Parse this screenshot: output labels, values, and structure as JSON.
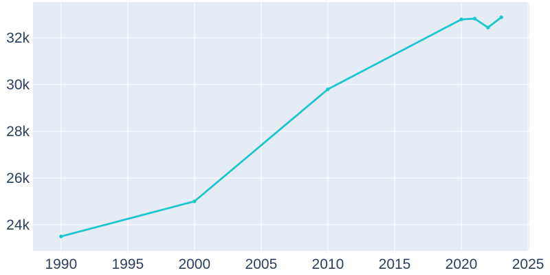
{
  "chart_data": {
    "type": "line",
    "title": "",
    "xlabel": "",
    "ylabel": "",
    "legend": false,
    "grid": true,
    "x": [
      1990,
      2000,
      2010,
      2020,
      2021,
      2022,
      2023
    ],
    "y": [
      23500,
      25000,
      29800,
      32790,
      32820,
      32440,
      32880
    ],
    "x_tick_values": [
      1990,
      1995,
      2000,
      2005,
      2010,
      2015,
      2020,
      2025
    ],
    "x_tick_labels": [
      "1990",
      "1995",
      "2000",
      "2005",
      "2010",
      "2015",
      "2020",
      "2025"
    ],
    "y_tick_values": [
      24000,
      26000,
      28000,
      30000,
      32000
    ],
    "y_tick_labels": [
      "24k",
      "26k",
      "28k",
      "30k",
      "32k"
    ],
    "xlim": [
      1987.9,
      2025.1
    ],
    "ylim": [
      22880,
      33530
    ],
    "colors": {
      "line": "#1bc7ce",
      "marker": "#1bc7ce",
      "plot_background": "#e5ecf6",
      "grid": "#ffffff",
      "tick_text": "#2a3f5f",
      "outer_background": "#ffffff"
    }
  }
}
